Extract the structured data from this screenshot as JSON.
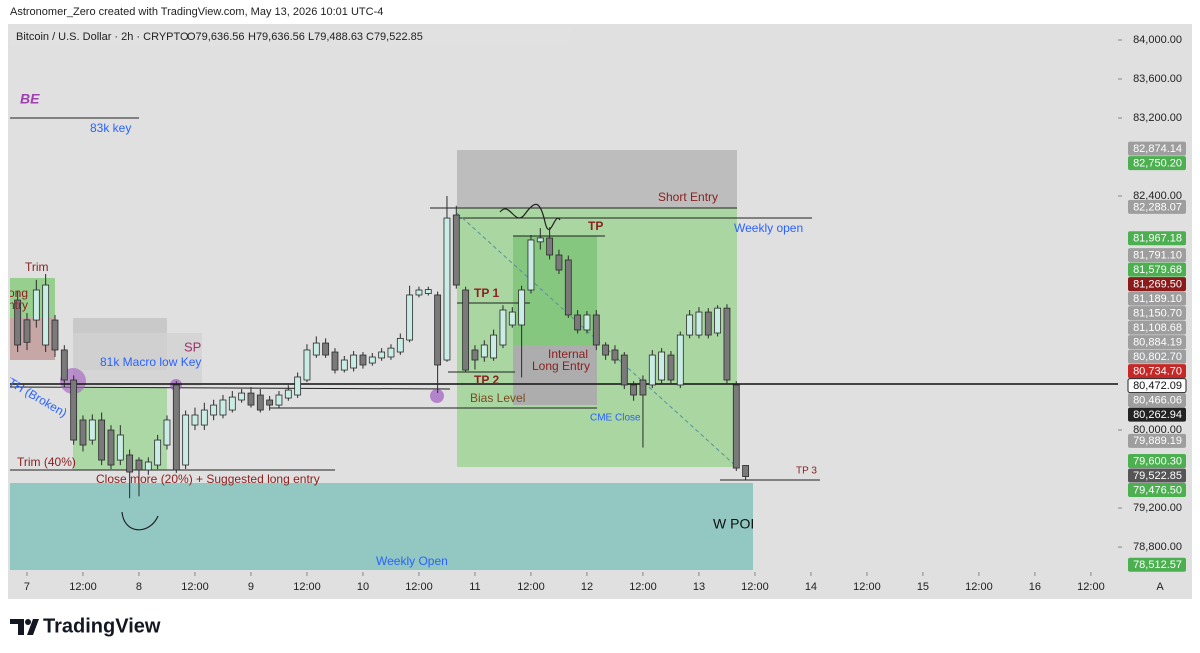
{
  "header": {
    "credit": "Astronomer_Zero created with TradingView.com, May 13, 2026 10:01 UTC-4",
    "footer": "TradingView"
  },
  "chart_data": {
    "type": "candlestick",
    "symbol": "Bitcoin / U.S. Dollar · 2h · CRYPTO",
    "ohlc_text": [
      "O79,636.56",
      "H79,636.56",
      "L79,488.63",
      "C79,522.85"
    ],
    "scale_mode": "A",
    "xlim": [
      -1.82,
      116.9
    ],
    "ylim": [
      78544,
      84164
    ],
    "xticks": [
      {
        "value": 0,
        "label": "7"
      },
      {
        "value": 6,
        "label": "12:00"
      },
      {
        "value": 12,
        "label": "8"
      },
      {
        "value": 18,
        "label": "12:00"
      },
      {
        "value": 24,
        "label": "9"
      },
      {
        "value": 30,
        "label": "12:00"
      },
      {
        "value": 36,
        "label": "10"
      },
      {
        "value": 42,
        "label": "12:00"
      },
      {
        "value": 48,
        "label": "11"
      },
      {
        "value": 54,
        "label": "12:00"
      },
      {
        "value": 60,
        "label": "12"
      },
      {
        "value": 66,
        "label": "12:00"
      },
      {
        "value": 72,
        "label": "13"
      },
      {
        "value": 78,
        "label": "12:00"
      },
      {
        "value": 84,
        "label": "14"
      },
      {
        "value": 90,
        "label": "12:00"
      },
      {
        "value": 96,
        "label": "15"
      },
      {
        "value": 102,
        "label": "12:00"
      },
      {
        "value": 108,
        "label": "16"
      },
      {
        "value": 114,
        "label": "12:00"
      }
    ],
    "yticks": [
      {
        "value": 78800,
        "label": "78,800.00"
      },
      {
        "value": 79200,
        "label": "79,200.00"
      },
      {
        "value": 80000,
        "label": "80,000.00"
      },
      {
        "value": 82400,
        "label": "82,400.00"
      },
      {
        "value": 83200,
        "label": "83,200.00"
      },
      {
        "value": 83600,
        "label": "83,600.00"
      },
      {
        "value": 84000,
        "label": "84,000.00"
      }
    ],
    "up_color": "#c9ece4",
    "down_color": "#7a7a7a",
    "outline_color": "#2b2b2b",
    "candles": {
      "x": [
        -1,
        0,
        1,
        2,
        3,
        4,
        5,
        6,
        7,
        8,
        9,
        10,
        11,
        12,
        13,
        14,
        15,
        16,
        17,
        18,
        19,
        20,
        21,
        22,
        23,
        24,
        25,
        26,
        27,
        28,
        29,
        30,
        31,
        32,
        33,
        34,
        35,
        36,
        37,
        38,
        39,
        40,
        41,
        42,
        43,
        44,
        45,
        46,
        47,
        48,
        49,
        50,
        51,
        52,
        53,
        54,
        55,
        56,
        57,
        58,
        59,
        60,
        61,
        62,
        63,
        64,
        65,
        66,
        67,
        68,
        69,
        70,
        71,
        72,
        73,
        74,
        75,
        76,
        77
      ],
      "open": [
        81333,
        81130,
        81128,
        80872,
        81128,
        80821,
        80513,
        80103,
        79897,
        80103,
        80000,
        79692,
        79744,
        79692,
        79590,
        79641,
        79846,
        80462,
        79641,
        80051,
        80051,
        80154,
        80154,
        80205,
        80308,
        80379,
        80359,
        80308,
        80256,
        80328,
        80359,
        80513,
        80769,
        80892,
        80800,
        80615,
        80636,
        80769,
        80687,
        80739,
        80749,
        80800,
        80923,
        81385,
        81400,
        81385,
        80718,
        82205,
        81436,
        80821,
        80749,
        80739,
        80872,
        81077,
        81077,
        81436,
        81930,
        81969,
        81795,
        81744,
        81180,
        81026,
        81180,
        80872,
        80821,
        80769,
        80462,
        80513,
        80462,
        80513,
        80769,
        80462,
        80974,
        80974,
        81210,
        80995,
        81250,
        80462,
        79636.56
      ],
      "high": [
        81430,
        81200,
        81540,
        81600,
        81180,
        80870,
        80560,
        80150,
        80160,
        80180,
        80050,
        80050,
        79800,
        79720,
        79720,
        79950,
        80150,
        80500,
        80200,
        80230,
        80280,
        80310,
        80360,
        80400,
        80420,
        80440,
        80420,
        80350,
        80400,
        80460,
        80590,
        80880,
        80960,
        80940,
        80840,
        80760,
        80810,
        80800,
        80790,
        80840,
        80880,
        80990,
        81480,
        81470,
        81470,
        81420,
        82400,
        82300,
        81470,
        80870,
        80920,
        81030,
        81280,
        81260,
        81480,
        82000,
        82070,
        82080,
        81850,
        81790,
        81230,
        81220,
        81230,
        80900,
        80870,
        80800,
        80500,
        80560,
        80820,
        80840,
        80810,
        81010,
        81230,
        81260,
        81250,
        81280,
        81290,
        80500,
        79636.56
      ],
      "low": [
        80800,
        80820,
        81050,
        80800,
        80750,
        80440,
        79850,
        79780,
        79850,
        79640,
        79600,
        79640,
        79300,
        79320,
        79540,
        79600,
        79800,
        79560,
        79600,
        80000,
        80000,
        80100,
        80120,
        80180,
        80280,
        80230,
        80180,
        80200,
        80230,
        80300,
        80330,
        80490,
        80740,
        80740,
        80580,
        80590,
        80600,
        80630,
        80660,
        80710,
        80720,
        80770,
        80900,
        81360,
        81380,
        80380,
        80700,
        81450,
        80590,
        80620,
        80700,
        80710,
        80840,
        81050,
        80540,
        81400,
        81850,
        81750,
        81600,
        81150,
        80990,
        80990,
        80820,
        80720,
        80680,
        80420,
        80300,
        79820,
        80430,
        80480,
        80480,
        80430,
        80940,
        80940,
        80940,
        80960,
        80480,
        79580,
        79488.63
      ],
      "close": [
        80872,
        80900,
        81436,
        81487,
        80821,
        80513,
        79897,
        79846,
        80103,
        79692,
        79641,
        79949,
        79569,
        79590,
        79672,
        79897,
        80103,
        79590,
        80154,
        80154,
        80205,
        80256,
        80308,
        80338,
        80379,
        80256,
        80205,
        80256,
        80359,
        80410,
        80544,
        80821,
        80892,
        80769,
        80615,
        80718,
        80769,
        80667,
        80749,
        80800,
        80840,
        80940,
        81385,
        81436,
        81440,
        80667,
        82174,
        81487,
        80615,
        80718,
        80872,
        80974,
        81231,
        81210,
        81436,
        81949,
        81970,
        81795,
        81641,
        81180,
        81026,
        81180,
        80872,
        80769,
        80718,
        80462,
        80359,
        80359,
        80769,
        80800,
        80513,
        80974,
        81180,
        81210,
        80974,
        81250,
        80513,
        79610,
        79522.85
      ]
    },
    "price_labels": [
      {
        "value": 82874.14,
        "label": "82,874.14",
        "color": "#9e9e9e"
      },
      {
        "value": 82750.2,
        "label": "82,750.20",
        "color": "#4caf50"
      },
      {
        "value": 82288.07,
        "label": "82,288.07",
        "color": "#9e9e9e"
      },
      {
        "value": 81967.18,
        "label": "81,967.18",
        "color": "#4caf50"
      },
      {
        "value": 81791.1,
        "label": "81,791.10",
        "color": "#9e9e9e"
      },
      {
        "value": 81579.68,
        "label": "81,579.68",
        "color": "#4caf50"
      },
      {
        "value": 81269.5,
        "label": "81,269.50",
        "color": "#8b1a1a"
      },
      {
        "value": 81189.1,
        "label": "81,189.10",
        "color": "#9e9e9e"
      },
      {
        "value": 81150.7,
        "label": "81,150.70",
        "color": "#9e9e9e"
      },
      {
        "value": 81108.68,
        "label": "81,108.68",
        "color": "#9e9e9e"
      },
      {
        "value": 80884.19,
        "label": "80,884.19",
        "color": "#9e9e9e"
      },
      {
        "value": 80802.7,
        "label": "80,802.70",
        "color": "#9e9e9e"
      },
      {
        "value": 80734.7,
        "label": "80,734.70",
        "color": "#c62828"
      },
      {
        "value": 80472.09,
        "label": "80,472.09",
        "color": "#ffffff",
        "line": true
      },
      {
        "value": 80466.06,
        "label": "80,466.06",
        "color": "#9e9e9e"
      },
      {
        "value": 80262.94,
        "label": "80,262.94",
        "color": "#222222"
      },
      {
        "value": 79889.19,
        "label": "79,889.19",
        "color": "#9e9e9e"
      },
      {
        "value": 79600.3,
        "label": "79,600.30",
        "color": "#4caf50"
      },
      {
        "value": 79522.85,
        "label": "79,522.85",
        "color": "#555555"
      },
      {
        "value": 79476.5,
        "label": "79,476.50",
        "color": "#4caf50"
      },
      {
        "value": 78512.57,
        "label": "78,512.57",
        "color": "#4caf50"
      }
    ],
    "annotations": [
      "BE",
      "83k key",
      "Trim",
      "ong",
      "ntry",
      "SP",
      "81k Macro low Key",
      "ETH (Broken)",
      "Trim (40%)",
      "Close more (20%) + Suggested long entry",
      "Weekly Open",
      "Short Entry",
      "Weekly open",
      "TP",
      "TP 1",
      "TP 2",
      "Internal",
      "Long Entry",
      "Bias Level",
      "CME Close",
      "TP 3",
      "W POI"
    ]
  }
}
